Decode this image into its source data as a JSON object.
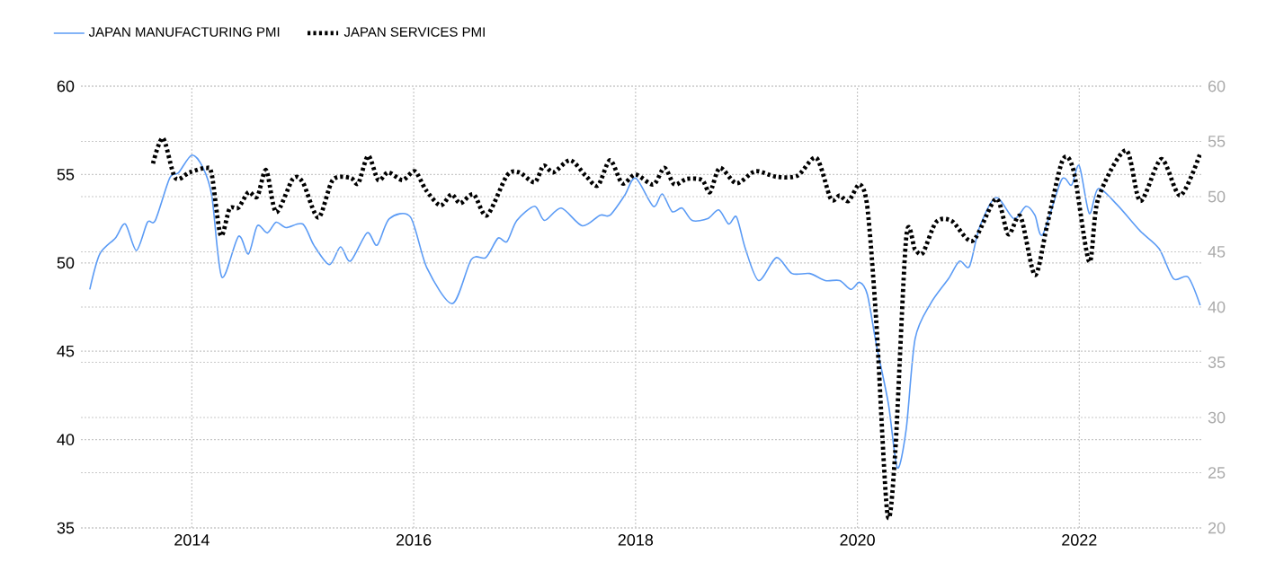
{
  "chart_data": {
    "type": "line",
    "xlim": [
      2013.0,
      2023.1
    ],
    "xticks": [
      2014,
      2016,
      2018,
      2020,
      2022
    ],
    "ylim": [
      35,
      60
    ],
    "yticks": [
      35,
      40,
      45,
      50,
      55,
      60
    ],
    "y2lim": [
      20,
      60
    ],
    "y2ticks": [
      20,
      25,
      30,
      35,
      40,
      45,
      50,
      55,
      60
    ],
    "grid": true,
    "legend": "top left",
    "series": [
      {
        "name": "JAPAN MANUFACTURING PMI",
        "color": "#5b9bf5",
        "line_style": "solid",
        "x": [
          2013.08,
          2013.17,
          2013.31,
          2013.4,
          2013.5,
          2013.6,
          2013.67,
          2013.8,
          2013.88,
          2014.0,
          2014.1,
          2014.18,
          2014.27,
          2014.42,
          2014.51,
          2014.59,
          2014.68,
          2014.76,
          2014.85,
          2015.0,
          2015.1,
          2015.24,
          2015.34,
          2015.43,
          2015.58,
          2015.67,
          2015.78,
          2015.97,
          2016.12,
          2016.35,
          2016.52,
          2016.65,
          2016.76,
          2016.84,
          2016.93,
          2017.09,
          2017.18,
          2017.33,
          2017.52,
          2017.68,
          2017.77,
          2017.9,
          2018.0,
          2018.16,
          2018.24,
          2018.33,
          2018.42,
          2018.51,
          2018.65,
          2018.75,
          2018.84,
          2018.91,
          2018.99,
          2019.11,
          2019.27,
          2019.41,
          2019.57,
          2019.71,
          2019.84,
          2019.94,
          2020.02,
          2020.09,
          2020.17,
          2020.28,
          2020.36,
          2020.44,
          2020.52,
          2020.66,
          2020.82,
          2020.92,
          2021.01,
          2021.1,
          2021.25,
          2021.41,
          2021.52,
          2021.6,
          2021.67,
          2021.84,
          2021.93,
          2022.0,
          2022.09,
          2022.17,
          2022.34,
          2022.55,
          2022.72,
          2022.85,
          2022.98,
          2023.09
        ],
        "values": [
          48.5,
          50.5,
          51.4,
          52.2,
          50.7,
          52.3,
          52.4,
          54.8,
          55.1,
          56.1,
          55.4,
          53.8,
          49.2,
          51.5,
          50.5,
          52.1,
          51.7,
          52.3,
          52.0,
          52.2,
          51.0,
          49.9,
          50.9,
          50.1,
          51.7,
          51.0,
          52.5,
          52.6,
          49.7,
          47.7,
          50.2,
          50.3,
          51.4,
          51.2,
          52.4,
          53.2,
          52.4,
          53.1,
          52.1,
          52.7,
          52.7,
          53.8,
          54.8,
          53.2,
          53.9,
          52.9,
          53.1,
          52.4,
          52.5,
          53.0,
          52.2,
          52.6,
          50.8,
          49.0,
          50.3,
          49.4,
          49.4,
          49.0,
          49.0,
          48.5,
          48.9,
          48.2,
          45.4,
          42.0,
          38.4,
          40.6,
          45.7,
          47.7,
          49.1,
          50.1,
          49.8,
          52.0,
          53.7,
          52.5,
          53.2,
          52.7,
          51.6,
          54.7,
          54.4,
          55.5,
          52.8,
          54.2,
          53.3,
          51.8,
          50.8,
          49.1,
          49.2,
          47.6
        ]
      },
      {
        "name": "JAPAN SERVICES PMI",
        "color": "#000000",
        "line_style": "dotted",
        "axis": "y2",
        "x": [
          2013.65,
          2013.74,
          2013.85,
          2013.98,
          2014.13,
          2014.18,
          2014.26,
          2014.34,
          2014.42,
          2014.51,
          2014.59,
          2014.67,
          2014.76,
          2014.91,
          2015.0,
          2015.14,
          2015.27,
          2015.43,
          2015.5,
          2015.59,
          2015.68,
          2015.77,
          2015.9,
          2016.01,
          2016.11,
          2016.24,
          2016.34,
          2016.42,
          2016.54,
          2016.66,
          2016.84,
          2016.95,
          2017.09,
          2017.17,
          2017.26,
          2017.41,
          2017.55,
          2017.66,
          2017.77,
          2017.88,
          2018.0,
          2018.16,
          2018.26,
          2018.35,
          2018.46,
          2018.6,
          2018.67,
          2018.76,
          2018.91,
          2019.08,
          2019.27,
          2019.46,
          2019.63,
          2019.76,
          2019.84,
          2019.92,
          2020.02,
          2020.09,
          2020.17,
          2020.27,
          2020.34,
          2020.44,
          2020.52,
          2020.59,
          2020.71,
          2020.85,
          2021.04,
          2021.25,
          2021.36,
          2021.47,
          2021.6,
          2021.71,
          2021.85,
          2021.95,
          2022.09,
          2022.17,
          2022.42,
          2022.55,
          2022.74,
          2022.91,
          2023.09
        ],
        "values": [
          53.0,
          55.3,
          51.7,
          52.2,
          52.6,
          52.0,
          46.5,
          48.9,
          49.0,
          50.4,
          50.0,
          52.4,
          48.6,
          51.6,
          51.3,
          48.1,
          51.5,
          51.7,
          51.2,
          53.7,
          51.5,
          52.2,
          51.5,
          52.3,
          50.6,
          49.2,
          50.2,
          49.4,
          50.2,
          48.3,
          51.9,
          52.2,
          51.3,
          52.8,
          52.2,
          53.3,
          51.9,
          51.0,
          53.3,
          51.2,
          52.0,
          51.1,
          52.6,
          51.1,
          51.6,
          51.5,
          50.4,
          52.6,
          51.2,
          52.3,
          51.8,
          51.9,
          53.5,
          49.8,
          50.1,
          49.6,
          51.1,
          49.0,
          38.7,
          21.3,
          26.7,
          46.3,
          45.2,
          44.9,
          47.7,
          47.8,
          46.0,
          49.8,
          46.6,
          48.2,
          42.9,
          47.4,
          53.3,
          52.3,
          44.1,
          49.8,
          54.2,
          49.6,
          53.4,
          50.1,
          53.9
        ]
      }
    ]
  }
}
